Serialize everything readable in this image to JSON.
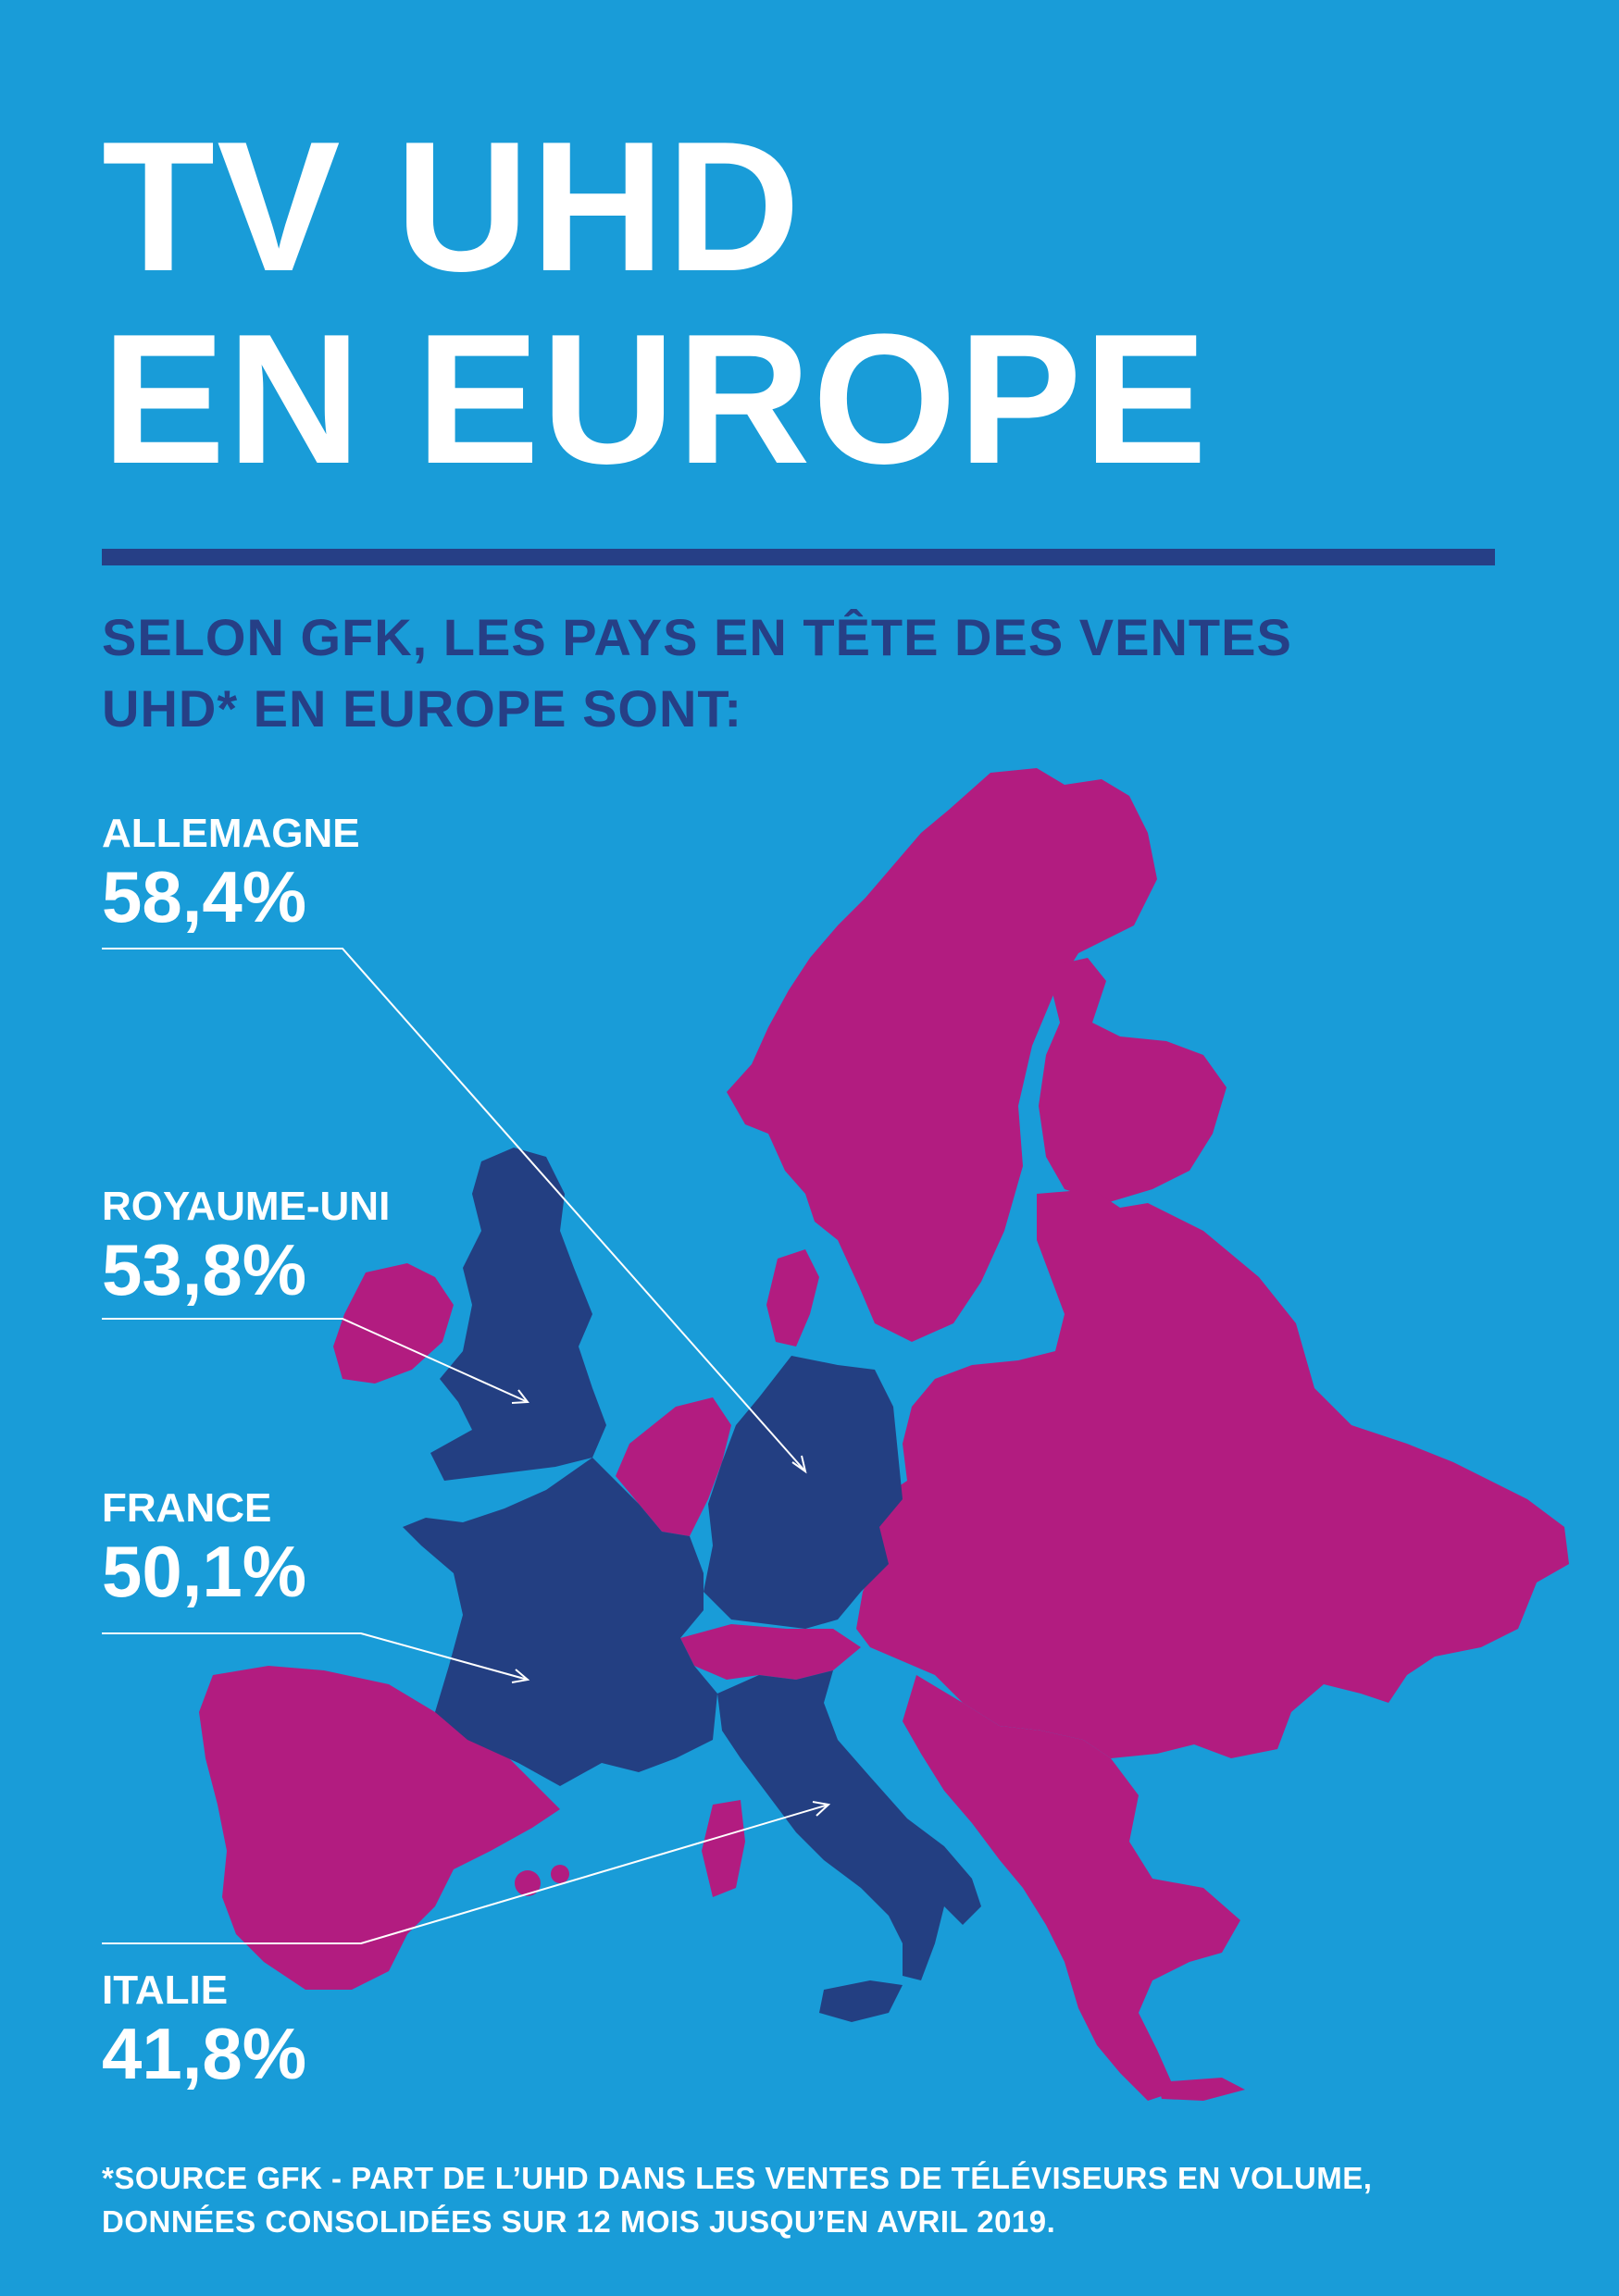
{
  "title": {
    "line1": "TV UHD",
    "line2": "EN EUROPE"
  },
  "subtitle": {
    "line1": "SELON GFK, LES PAYS EN TÊTE DES VENTES",
    "line2": "UHD* EN EUROPE SONT:"
  },
  "countries": [
    {
      "name": "ALLEMAGNE",
      "share": "58,4%",
      "share_value": 58.4
    },
    {
      "name": "ROYAUME-UNI",
      "share": "53,8%",
      "share_value": 53.8
    },
    {
      "name": "FRANCE",
      "share": "50,1%",
      "share_value": 50.1
    },
    {
      "name": "ITALIE",
      "share": "41,8%",
      "share_value": 41.8
    }
  ],
  "footnote": {
    "line1": "*SOURCE GFK - PART DE L’UHD DANS LES VENTES DE TÉLÉVISEURS EN VOLUME,",
    "line2": "DONNÉES CONSOLIDÉES SUR 12 MOIS JUSQU’EN AVRIL 2019."
  },
  "colors": {
    "background": "#199cd8",
    "highlighted_countries": "#233f82",
    "other_countries": "#b21c80",
    "text": "#ffffff",
    "subtitle": "#263f86"
  }
}
